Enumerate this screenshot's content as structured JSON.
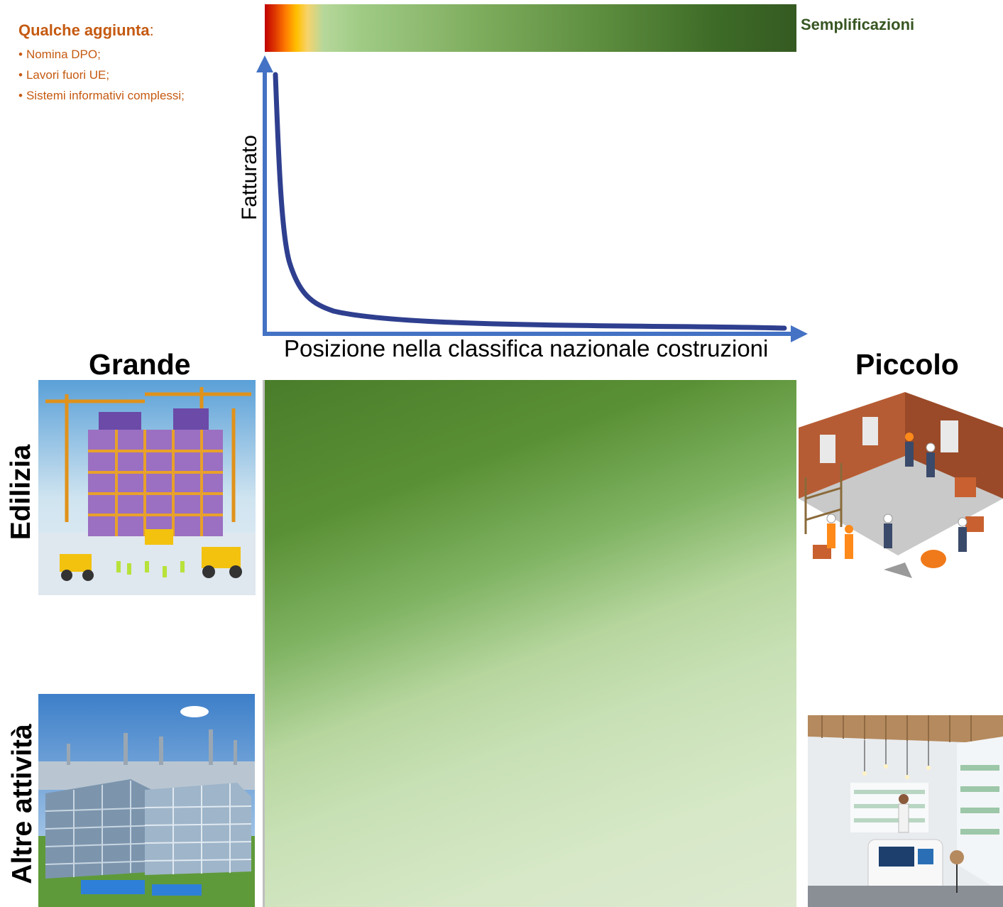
{
  "notes": {
    "heading": "Qualche aggiunta",
    "heading_suffix": ":",
    "items": [
      "Nomina DPO;",
      "Lavori fuori UE;",
      "Sistemi informativi complessi;"
    ]
  },
  "gradient_bar": {
    "label": "Semplificazioni",
    "colors": [
      "#c00000",
      "#ffc000",
      "#9fcb85",
      "#355a22"
    ]
  },
  "chart": {
    "y_label": "Fatturato",
    "x_label": "Posizione nella classifica nazionale costruzioni",
    "curve_color": "#2f3f8f",
    "axis_color": "#4472c4"
  },
  "size_labels": {
    "large": "Grande",
    "small": "Piccolo"
  },
  "category_labels": {
    "construction": "Edilizia",
    "other": "Altre attività"
  },
  "illustrations": {
    "large_construction": "construction-site-illustration",
    "small_construction": "small-renovation-workers-illustration",
    "large_other": "industrial-office-complex-illustration",
    "small_other": "small-shop-interior-illustration"
  },
  "matrix": {
    "colors": [
      "#4a7d2a",
      "#b6d69e",
      "#dde9d0"
    ]
  }
}
